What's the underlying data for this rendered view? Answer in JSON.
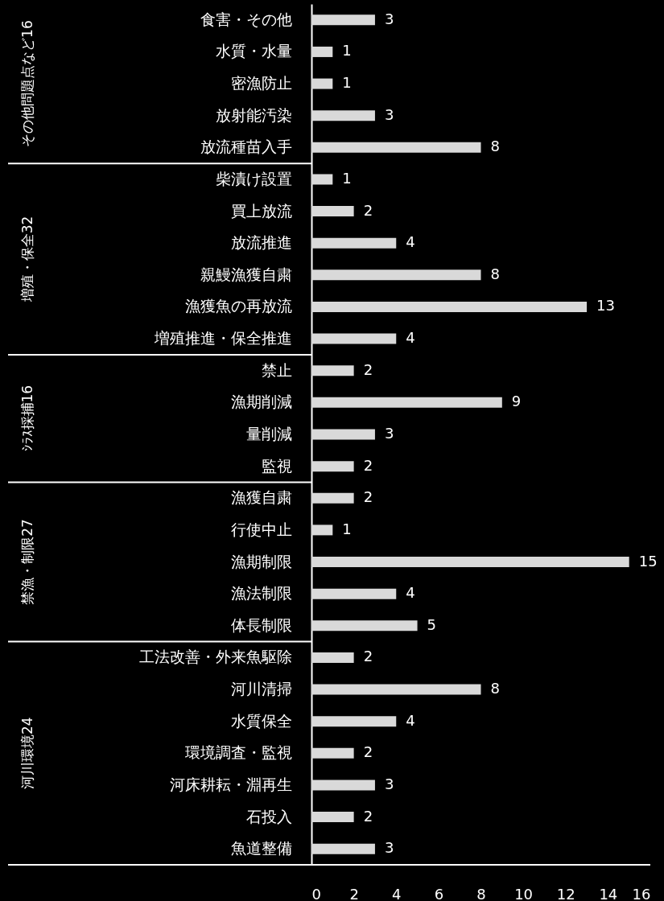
{
  "chart_data": {
    "type": "bar",
    "orientation": "horizontal",
    "categories": [
      "食害・その他",
      "水質・水量",
      "密漁防止",
      "放射能汚染",
      "放流種苗入手",
      "柴漬け設置",
      "買上放流",
      "放流推進",
      "親鰻漁獲自粛",
      "漁獲魚の再放流",
      "増殖推進・保全推進",
      "禁止",
      "漁期削減",
      "量削減",
      "監視",
      "漁獲自粛",
      "行使中止",
      "漁期制限",
      "漁法制限",
      "体長制限",
      "工法改善・外来魚駆除",
      "河川清掃",
      "水質保全",
      "環境調査・監視",
      "河床耕耘・淵再生",
      "石投入",
      "魚道整備"
    ],
    "values": [
      3,
      1,
      1,
      3,
      8,
      1,
      2,
      4,
      8,
      13,
      4,
      2,
      9,
      3,
      2,
      2,
      1,
      15,
      4,
      5,
      2,
      8,
      4,
      2,
      3,
      2,
      3
    ],
    "color": "#d9d9d9",
    "xlim": [
      0,
      16
    ],
    "xticks": [
      0,
      2,
      4,
      6,
      8,
      10,
      12,
      14,
      16
    ],
    "data_labels": true,
    "annotations": [
      "その他問題点など16",
      "増殖・保全32",
      "ｼﾗｽ採捕16",
      "禁漁・制限27",
      "河川環境24"
    ]
  }
}
